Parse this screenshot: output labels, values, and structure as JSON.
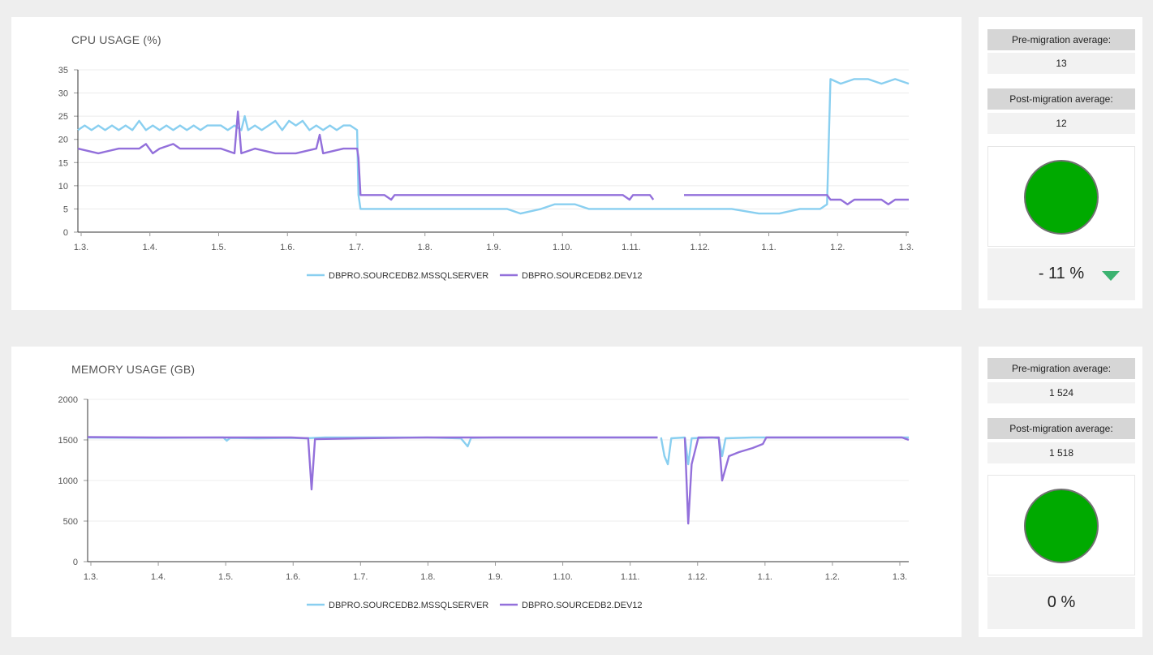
{
  "charts": {
    "cpu": {
      "title": "CPU USAGE (%)"
    },
    "memory": {
      "title": "MEMORY USAGE (GB)"
    }
  },
  "summary": {
    "cpu": {
      "pre_label": "Pre-migration average:",
      "pre_value": "13",
      "post_label": "Post-migration average:",
      "post_value": "12",
      "indicator_color": "#00aa00",
      "change": "- 11 %",
      "trend": "down"
    },
    "memory": {
      "pre_label": "Pre-migration average:",
      "pre_value": "1 524",
      "post_label": "Post-migration average:",
      "post_value": "1 518",
      "indicator_color": "#00aa00",
      "change": "0 %",
      "trend": "none"
    }
  },
  "colors": {
    "series1": "#89cff0",
    "series2": "#9370db",
    "status_good": "#00aa00",
    "arrow_down": "#3cb371"
  },
  "chart_data": [
    {
      "type": "line",
      "title": "CPU USAGE (%)",
      "xlabel": "",
      "ylabel": "",
      "x_tick_labels": [
        "1.3.",
        "1.4.",
        "1.5.",
        "1.6.",
        "1.7.",
        "1.8.",
        "1.9.",
        "1.10.",
        "1.11.",
        "1.12.",
        "1.1.",
        "1.2.",
        "1.3."
      ],
      "xlim": [
        0,
        12.2
      ],
      "ylim": [
        0,
        35
      ],
      "y_ticks": [
        0,
        5,
        10,
        15,
        20,
        25,
        30,
        35
      ],
      "grid": true,
      "legend": "bottom",
      "series": [
        {
          "name": "DBPRO.SOURCEDB2.MSSQLSERVER",
          "color": "#89cff0",
          "points": [
            [
              0,
              22
            ],
            [
              0.1,
              23
            ],
            [
              0.2,
              22
            ],
            [
              0.3,
              23
            ],
            [
              0.4,
              22
            ],
            [
              0.5,
              23
            ],
            [
              0.6,
              22
            ],
            [
              0.7,
              23
            ],
            [
              0.8,
              22
            ],
            [
              0.9,
              24
            ],
            [
              1.0,
              22
            ],
            [
              1.1,
              23
            ],
            [
              1.2,
              22
            ],
            [
              1.3,
              23
            ],
            [
              1.4,
              22
            ],
            [
              1.5,
              23
            ],
            [
              1.6,
              22
            ],
            [
              1.7,
              23
            ],
            [
              1.8,
              22
            ],
            [
              1.9,
              23
            ],
            [
              2.0,
              23
            ],
            [
              2.1,
              23
            ],
            [
              2.2,
              22
            ],
            [
              2.3,
              23
            ],
            [
              2.4,
              22
            ],
            [
              2.45,
              25
            ],
            [
              2.5,
              22
            ],
            [
              2.6,
              23
            ],
            [
              2.7,
              22
            ],
            [
              2.8,
              23
            ],
            [
              2.9,
              24
            ],
            [
              3.0,
              22
            ],
            [
              3.1,
              24
            ],
            [
              3.2,
              23
            ],
            [
              3.3,
              24
            ],
            [
              3.4,
              22
            ],
            [
              3.5,
              23
            ],
            [
              3.6,
              22
            ],
            [
              3.7,
              23
            ],
            [
              3.8,
              22
            ],
            [
              3.9,
              23
            ],
            [
              4.0,
              23
            ],
            [
              4.1,
              22
            ],
            [
              4.12,
              8
            ],
            [
              4.15,
              5
            ],
            [
              4.3,
              5
            ],
            [
              4.5,
              5
            ],
            [
              4.8,
              5
            ],
            [
              5.0,
              5
            ],
            [
              5.2,
              5
            ],
            [
              5.5,
              5
            ],
            [
              5.8,
              5
            ],
            [
              6.0,
              5
            ],
            [
              6.3,
              5
            ],
            [
              6.5,
              4
            ],
            [
              6.8,
              5
            ],
            [
              7.0,
              6
            ],
            [
              7.3,
              6
            ],
            [
              7.5,
              5
            ],
            [
              7.8,
              5
            ],
            [
              8.0,
              5
            ],
            [
              8.2,
              5
            ],
            [
              8.5,
              5
            ],
            [
              8.8,
              5
            ],
            [
              9.0,
              5
            ],
            [
              9.3,
              5
            ],
            [
              9.6,
              5
            ],
            [
              10.0,
              4
            ],
            [
              10.3,
              4
            ],
            [
              10.6,
              5
            ],
            [
              10.9,
              5
            ],
            [
              11.0,
              6
            ],
            [
              11.05,
              33
            ],
            [
              11.2,
              32
            ],
            [
              11.4,
              33
            ],
            [
              11.6,
              33
            ],
            [
              11.8,
              32
            ],
            [
              12.0,
              33
            ],
            [
              12.2,
              32
            ]
          ]
        },
        {
          "name": "DBPRO.SOURCEDB2.DEV12",
          "color": "#9370db",
          "points": [
            [
              0,
              18
            ],
            [
              0.3,
              17
            ],
            [
              0.6,
              18
            ],
            [
              0.9,
              18
            ],
            [
              1.0,
              19
            ],
            [
              1.1,
              17
            ],
            [
              1.2,
              18
            ],
            [
              1.4,
              19
            ],
            [
              1.5,
              18
            ],
            [
              1.8,
              18
            ],
            [
              2.1,
              18
            ],
            [
              2.3,
              17
            ],
            [
              2.35,
              26
            ],
            [
              2.4,
              17
            ],
            [
              2.6,
              18
            ],
            [
              2.9,
              17
            ],
            [
              3.2,
              17
            ],
            [
              3.5,
              18
            ],
            [
              3.55,
              21
            ],
            [
              3.6,
              17
            ],
            [
              3.9,
              18
            ],
            [
              4.1,
              18
            ],
            [
              4.12,
              16
            ],
            [
              4.15,
              8
            ],
            [
              4.5,
              8
            ],
            [
              4.6,
              7
            ],
            [
              4.65,
              8
            ],
            [
              5.0,
              8
            ],
            [
              6.0,
              8
            ],
            [
              7.0,
              8
            ],
            [
              8.0,
              8
            ],
            [
              8.1,
              7
            ],
            [
              8.15,
              8
            ],
            [
              8.4,
              8
            ],
            [
              8.45,
              7
            ],
            [
              null,
              null
            ],
            [
              8.9,
              8
            ],
            [
              9.5,
              8
            ],
            [
              10.0,
              8
            ],
            [
              10.5,
              8
            ],
            [
              11.0,
              8
            ],
            [
              11.05,
              7
            ],
            [
              11.2,
              7
            ],
            [
              11.3,
              6
            ],
            [
              11.4,
              7
            ],
            [
              11.6,
              7
            ],
            [
              11.8,
              7
            ],
            [
              11.9,
              6
            ],
            [
              12.0,
              7
            ],
            [
              12.2,
              7
            ]
          ]
        }
      ]
    },
    {
      "type": "line",
      "title": "MEMORY USAGE (GB)",
      "xlabel": "",
      "ylabel": "",
      "x_tick_labels": [
        "1.3.",
        "1.4.",
        "1.5.",
        "1.6.",
        "1.7.",
        "1.8.",
        "1.9.",
        "1.10.",
        "1.11.",
        "1.12.",
        "1.1.",
        "1.2.",
        "1.3."
      ],
      "xlim": [
        0,
        12.1
      ],
      "ylim": [
        0,
        2000
      ],
      "y_ticks": [
        0,
        500,
        1000,
        1500,
        2000
      ],
      "grid": true,
      "legend": "bottom",
      "series": [
        {
          "name": "DBPRO.SOURCEDB2.MSSQLSERVER",
          "color": "#89cff0",
          "points": [
            [
              0,
              1530
            ],
            [
              1.0,
              1525
            ],
            [
              2.0,
              1530
            ],
            [
              2.05,
              1490
            ],
            [
              2.1,
              1525
            ],
            [
              2.5,
              1520
            ],
            [
              3.0,
              1525
            ],
            [
              3.2,
              1520
            ],
            [
              3.5,
              1530
            ],
            [
              4.0,
              1530
            ],
            [
              5.0,
              1530
            ],
            [
              5.5,
              1520
            ],
            [
              5.6,
              1420
            ],
            [
              5.65,
              1525
            ],
            [
              6.0,
              1530
            ],
            [
              7.0,
              1530
            ],
            [
              8.0,
              1530
            ],
            [
              8.4,
              1530
            ],
            [
              null,
              null
            ],
            [
              8.45,
              1530
            ],
            [
              8.5,
              1300
            ],
            [
              8.55,
              1200
            ],
            [
              8.6,
              1520
            ],
            [
              8.8,
              1530
            ],
            [
              8.85,
              1200
            ],
            [
              8.9,
              1520
            ],
            [
              9.2,
              1530
            ],
            [
              9.3,
              1520
            ],
            [
              9.35,
              1300
            ],
            [
              9.4,
              1520
            ],
            [
              9.8,
              1530
            ],
            [
              10.0,
              1530
            ],
            [
              11.0,
              1530
            ],
            [
              12.1,
              1530
            ]
          ]
        },
        {
          "name": "DBPRO.SOURCEDB2.DEV12",
          "color": "#9370db",
          "points": [
            [
              0,
              1535
            ],
            [
              1.0,
              1530
            ],
            [
              2.0,
              1530
            ],
            [
              2.5,
              1530
            ],
            [
              3.0,
              1530
            ],
            [
              3.25,
              1520
            ],
            [
              3.3,
              890
            ],
            [
              3.35,
              1510
            ],
            [
              4.0,
              1520
            ],
            [
              5.0,
              1530
            ],
            [
              6.0,
              1530
            ],
            [
              7.0,
              1530
            ],
            [
              8.0,
              1530
            ],
            [
              8.4,
              1530
            ],
            [
              null,
              null
            ],
            [
              8.8,
              1530
            ],
            [
              8.85,
              470
            ],
            [
              8.9,
              1200
            ],
            [
              9.0,
              1530
            ],
            [
              9.3,
              1530
            ],
            [
              9.35,
              1000
            ],
            [
              9.45,
              1300
            ],
            [
              9.6,
              1350
            ],
            [
              9.8,
              1400
            ],
            [
              9.95,
              1450
            ],
            [
              10.0,
              1530
            ],
            [
              10.5,
              1530
            ],
            [
              11.0,
              1530
            ],
            [
              12.0,
              1530
            ],
            [
              12.1,
              1500
            ]
          ]
        }
      ]
    }
  ]
}
